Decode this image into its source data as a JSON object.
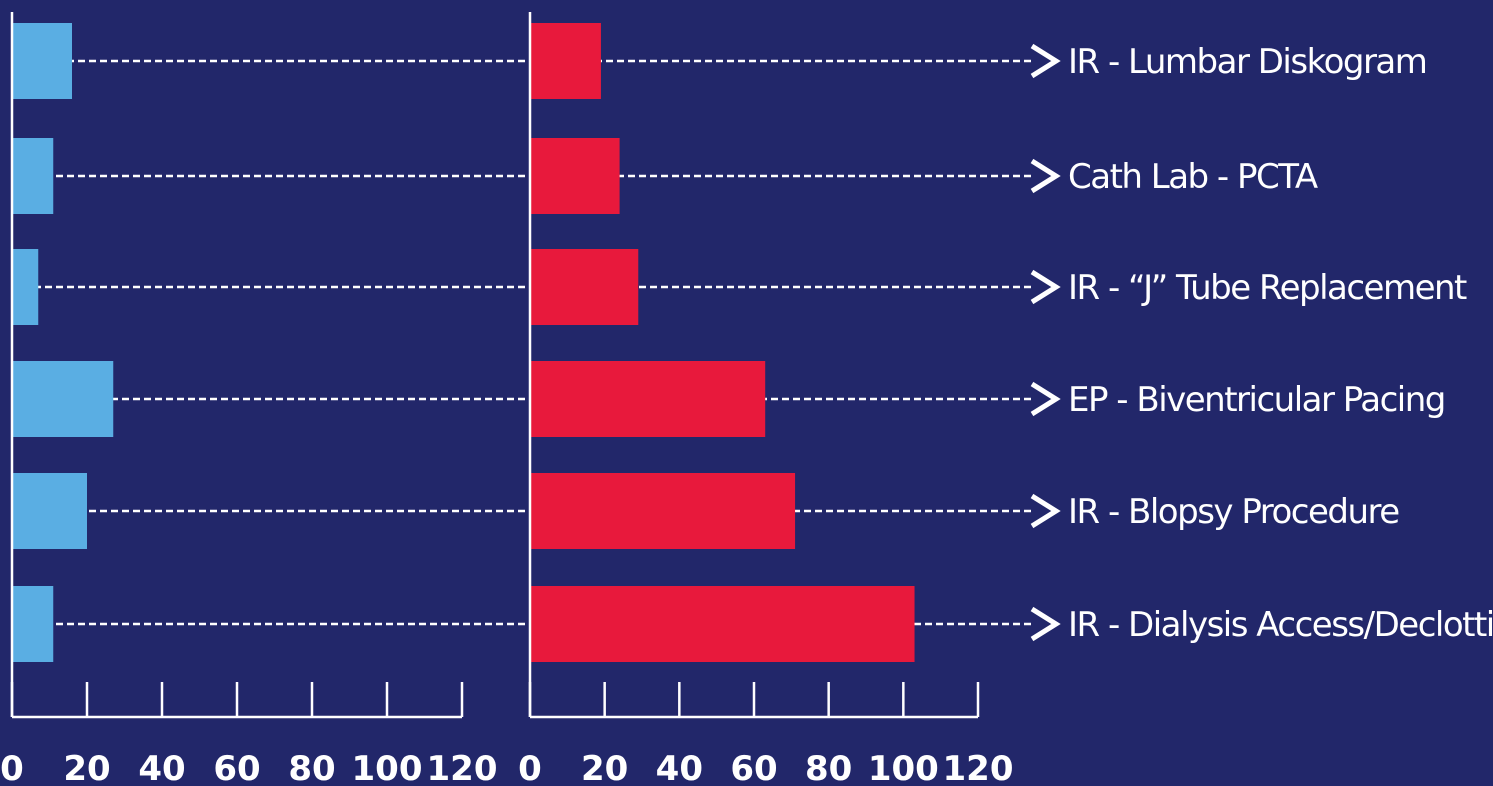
{
  "chart_data": {
    "type": "bar",
    "orientation": "horizontal",
    "categories": [
      "IR - Lumbar Diskogram",
      "Cath Lab - PCTA",
      "IR - “J” Tube Replacement",
      "EP - Biventricular Pacing",
      "IR - Blopsy Procedure",
      "IR - Dialysis Access/Declotting"
    ],
    "series": [
      {
        "values": [
          16,
          11,
          7,
          27,
          20,
          11
        ],
        "color": "#5aaee3"
      },
      {
        "values": [
          19,
          24,
          29,
          63,
          71,
          103
        ],
        "color": "#e8193c"
      }
    ],
    "xlim": [
      0,
      120
    ],
    "xticks": [
      "0",
      "20",
      "40",
      "60",
      "80",
      "100",
      "120"
    ],
    "title": "",
    "xlabel": "",
    "ylabel": "",
    "grid": false,
    "legend": "none",
    "label_marker": ">",
    "colors": {
      "background": "#22276a",
      "axis": "#ffffff",
      "leader": "#ffffff"
    }
  }
}
